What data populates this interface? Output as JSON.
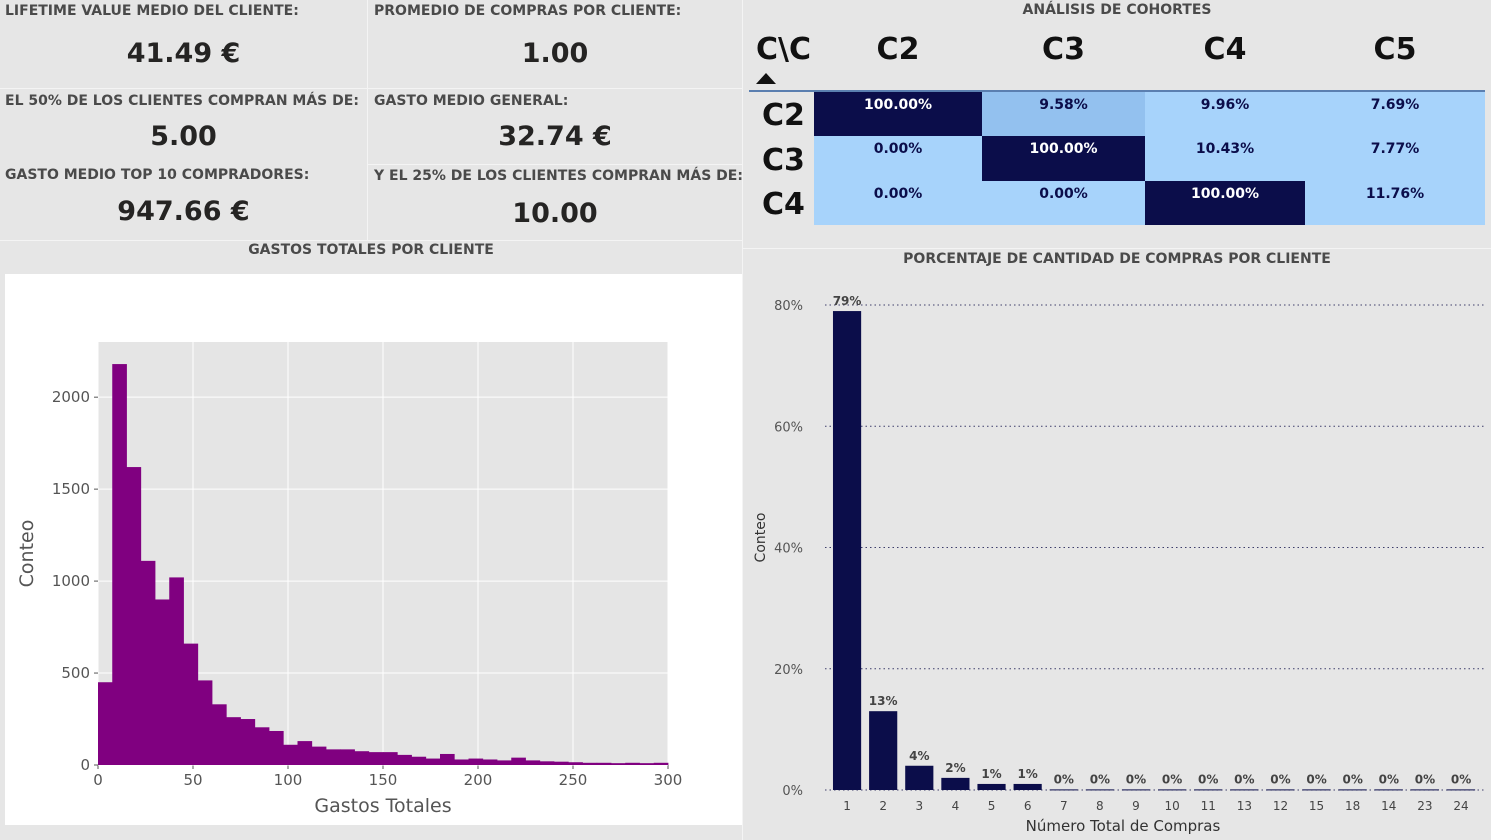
{
  "kpis": {
    "ltv": {
      "label": "LIFETIME VALUE MEDIO DEL CLIENTE:",
      "value": "41.49 €"
    },
    "avg_purchases": {
      "label": "PROMEDIO DE COMPRAS POR CLIENTE:",
      "value": "1.00"
    },
    "p50": {
      "label": "EL 50% DE LOS CLIENTES COMPRAN MÁS DE:",
      "value": "5.00"
    },
    "avg_spend": {
      "label": "GASTO MEDIO GENERAL:",
      "value": "32.74 €"
    },
    "top10": {
      "label": "GASTO MEDIO TOP 10 COMPRADORES:",
      "value": "947.66 €"
    },
    "p25": {
      "label": "Y EL 25% DE LOS CLIENTES COMPRAN MÁS DE:",
      "value": "10.00"
    }
  },
  "cohort": {
    "title": "ANÁLISIS DE COHORTES",
    "corner": "C\\C",
    "columns": [
      "C2",
      "C3",
      "C4",
      "C5"
    ],
    "rows": [
      {
        "label": "C2",
        "cells": [
          "100.00%",
          "9.58%",
          "9.96%",
          "7.69%"
        ],
        "levels": [
          1.0,
          0.0958,
          0.0996,
          0.0769
        ]
      },
      {
        "label": "C3",
        "cells": [
          "0.00%",
          "100.00%",
          "10.43%",
          "7.77%"
        ],
        "levels": [
          0.0,
          1.0,
          0.1043,
          0.0777
        ]
      },
      {
        "label": "C4",
        "cells": [
          "0.00%",
          "0.00%",
          "100.00%",
          "11.76%"
        ],
        "levels": [
          0.0,
          0.0,
          1.0,
          0.1176
        ]
      }
    ],
    "colors": {
      "high": "#0b0d4a",
      "mid": "#93c1ef",
      "low": "#a7d3fb",
      "high_text": "#ffffff",
      "low_text": "#0b0d4a"
    }
  },
  "histogram": {
    "section_title": "GASTOS TOTALES POR CLIENTE",
    "chart_data": {
      "type": "bar",
      "xlabel": "Gastos Totales",
      "ylabel": "Conteo",
      "xlim": [
        0,
        300
      ],
      "ylim": [
        0,
        2300
      ],
      "xticks": [
        "0",
        "50",
        "100",
        "150",
        "200",
        "250",
        "300"
      ],
      "yticks": [
        "0",
        "500",
        "1000",
        "1500",
        "2000"
      ],
      "bin_width": 7.5,
      "values": [
        450,
        2180,
        1620,
        1110,
        900,
        1020,
        660,
        460,
        330,
        260,
        250,
        205,
        185,
        110,
        130,
        100,
        85,
        85,
        75,
        70,
        70,
        55,
        45,
        35,
        60,
        30,
        35,
        30,
        25,
        40,
        25,
        20,
        18,
        15,
        12,
        12,
        10,
        12,
        10,
        12
      ],
      "bar_color": "#800080",
      "grid": true
    }
  },
  "purchases_chart": {
    "section_title": "PORCENTAJE DE CANTIDAD DE COMPRAS POR CLIENTE",
    "chart_data": {
      "type": "bar",
      "xlabel": "Número Total de Compras",
      "ylabel": "Conteo",
      "categories": [
        "1",
        "2",
        "3",
        "4",
        "5",
        "6",
        "7",
        "8",
        "9",
        "10",
        "11",
        "13",
        "12",
        "15",
        "18",
        "14",
        "23",
        "24"
      ],
      "values": [
        79,
        13,
        4,
        2,
        1,
        1,
        0.1,
        0.1,
        0.1,
        0.1,
        0.1,
        0.1,
        0.1,
        0.1,
        0.1,
        0.1,
        0.1,
        0.1
      ],
      "data_labels": [
        "79%",
        "13%",
        "4%",
        "2%",
        "1%",
        "1%",
        "0%",
        "0%",
        "0%",
        "0%",
        "0%",
        "0%",
        "0%",
        "0%",
        "0%",
        "0%",
        "0%",
        "0%"
      ],
      "yticks": [
        "0%",
        "20%",
        "40%",
        "60%",
        "80%"
      ],
      "ylim": [
        0,
        80
      ],
      "bar_color": "#0b0d4a",
      "grid": "dotted"
    }
  }
}
